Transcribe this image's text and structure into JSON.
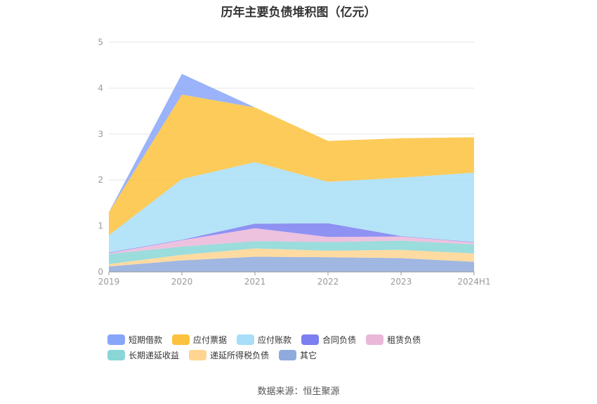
{
  "title": "历年主要负债堆积图（亿元）",
  "source": "数据来源：恒生聚源",
  "chart_data": {
    "type": "area",
    "stacked": true,
    "title": "历年主要负债堆积图（亿元）",
    "categories": [
      "2019",
      "2020",
      "2021",
      "2022",
      "2023",
      "2024H1"
    ],
    "ylim": [
      0,
      5
    ],
    "yticks": [
      "0",
      "1",
      "2",
      "3",
      "4",
      "5"
    ],
    "grid": true,
    "legend_position": "bottom",
    "series": [
      {
        "name": "其它",
        "color": "#8faadc",
        "values": [
          0.12,
          0.25,
          0.33,
          0.32,
          0.3,
          0.22
        ]
      },
      {
        "name": "递延所得税负债",
        "color": "#ffd591",
        "values": [
          0.05,
          0.12,
          0.18,
          0.14,
          0.18,
          0.18
        ]
      },
      {
        "name": "长期递延收益",
        "color": "#8ad6d6",
        "values": [
          0.22,
          0.18,
          0.16,
          0.19,
          0.2,
          0.2
        ]
      },
      {
        "name": "租赁负债",
        "color": "#eab7d9",
        "values": [
          0.02,
          0.14,
          0.28,
          0.11,
          0.09,
          0.04
        ]
      },
      {
        "name": "合同负债",
        "color": "#7b7ff0",
        "values": [
          0.01,
          0.01,
          0.1,
          0.3,
          0.01,
          0.01
        ]
      },
      {
        "name": "应付账款",
        "color": "#a8def7",
        "values": [
          0.38,
          1.32,
          1.34,
          0.9,
          1.27,
          1.51
        ]
      },
      {
        "name": "应付票据",
        "color": "#fcc23d",
        "values": [
          0.5,
          1.84,
          1.19,
          0.89,
          0.86,
          0.77
        ]
      },
      {
        "name": "短期借款",
        "color": "#88a6f9",
        "values": [
          0.0,
          0.45,
          0.0,
          0.0,
          0.0,
          0.0
        ]
      }
    ],
    "legend_order": [
      "短期借款",
      "应付票据",
      "应付账款",
      "合同负债",
      "租赁负债",
      "长期递延收益",
      "递延所得税负债",
      "其它"
    ]
  }
}
